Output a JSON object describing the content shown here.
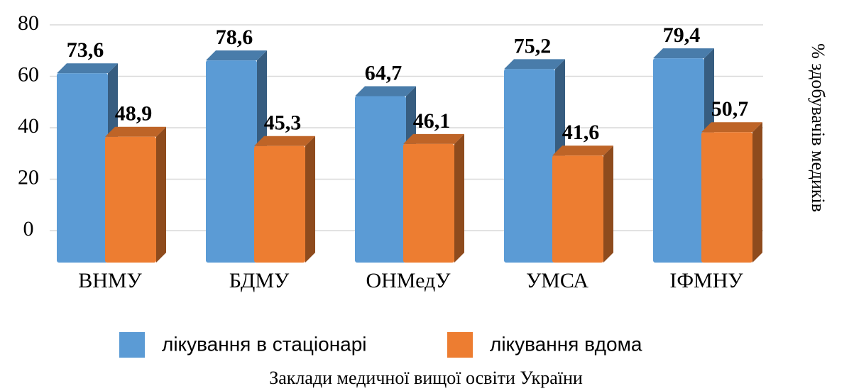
{
  "chart_data": {
    "type": "bar",
    "x_label": "Заклади медичної вищої освіти України",
    "y_label": "% здобувачів медиків",
    "categories": [
      "ВНМУ",
      "БДМУ",
      "ОНМедУ",
      "УМСА",
      "ІФМНУ"
    ],
    "series": [
      {
        "name": "лікування в стаціонарі",
        "color": "#5b9bd5",
        "values": [
          73.6,
          78.6,
          64.7,
          75.2,
          79.4
        ],
        "value_labels": [
          "73,6",
          "78,6",
          "64,7",
          "75,2",
          "79,4"
        ]
      },
      {
        "name": "лікування вдома",
        "color": "#ed7d31",
        "values": [
          48.9,
          45.3,
          46.1,
          41.6,
          50.7
        ],
        "value_labels": [
          "48,9",
          "45,3",
          "46,1",
          "41,6",
          "50,7"
        ]
      }
    ],
    "ylim": [
      0,
      80
    ],
    "yticks": [
      0,
      20,
      40,
      60,
      80
    ],
    "grid": true,
    "legend": "bottom"
  }
}
